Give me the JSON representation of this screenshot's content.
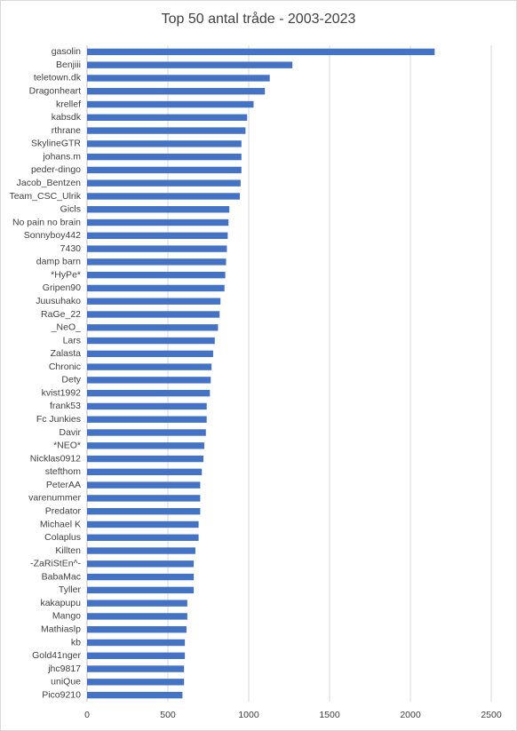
{
  "chart_data": {
    "type": "bar",
    "orientation": "horizontal",
    "title": "Top 50 antal tråde - 2003-2023",
    "categories": [
      "gasolin",
      "Benjiii",
      "teletown.dk",
      "Dragonheart",
      "krellef",
      "kabsdk",
      "rthrane",
      "SkylineGTR",
      "johans.m",
      "peder-dingo",
      "Jacob_Bentzen",
      "Team_CSC_Ulrik",
      "Gicls",
      "No pain no brain",
      "Sonnyboy442",
      "7430",
      "damp barn",
      "*HyPe*",
      "Gripen90",
      "Juusuhako",
      "RaGe_22",
      "_NeO_",
      "Lars",
      "Zalasta",
      "Chronic",
      "Dety",
      "kvist1992",
      "frank53",
      "Fc Junkies",
      "Davir",
      "*NEO*",
      "Nicklas0912",
      "stefthom",
      "PeterAA",
      "varenummer",
      "Predator",
      "Michael K",
      "Colaplus",
      "Killten",
      "-ZaRiStEn^-",
      "BabaMac",
      "Tyller",
      "kakapupu",
      "Mango",
      "Mathiaslp",
      "kb",
      "Gold41nger",
      "jhc9817",
      "uniQue",
      "Pico9210"
    ],
    "values": [
      2150,
      1270,
      1130,
      1100,
      1030,
      990,
      980,
      955,
      955,
      955,
      950,
      945,
      880,
      875,
      870,
      865,
      860,
      855,
      850,
      825,
      820,
      810,
      790,
      780,
      770,
      765,
      760,
      740,
      740,
      735,
      725,
      720,
      710,
      700,
      700,
      700,
      690,
      690,
      670,
      660,
      660,
      660,
      620,
      620,
      615,
      605,
      605,
      600,
      600,
      590
    ],
    "color": "#4472c4",
    "xlim": [
      0,
      2500
    ],
    "xticks": [
      0,
      500,
      1000,
      1500,
      2000,
      2500
    ],
    "grid": true
  }
}
